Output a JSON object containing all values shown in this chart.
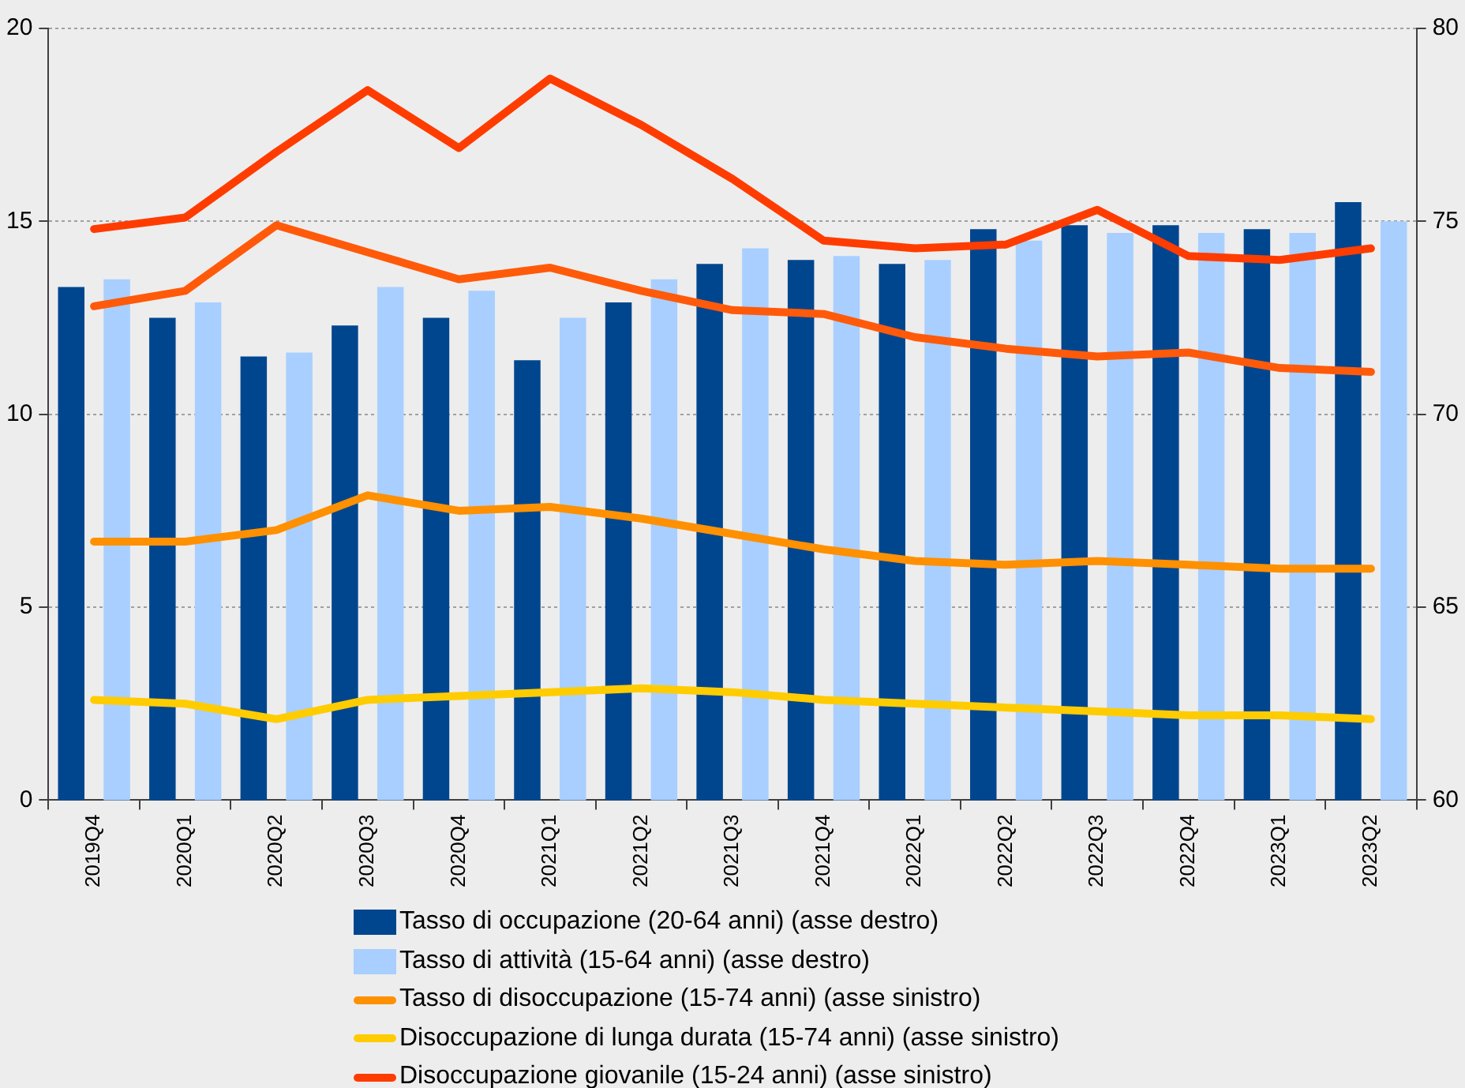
{
  "chart_data": {
    "type": "bar",
    "categories": [
      "2019Q4",
      "2020Q1",
      "2020Q2",
      "2020Q3",
      "2020Q4",
      "2021Q1",
      "2021Q2",
      "2021Q3",
      "2021Q4",
      "2022Q1",
      "2022Q2",
      "2022Q3",
      "2022Q4",
      "2023Q1",
      "2023Q2"
    ],
    "ylim": [
      0,
      20
    ],
    "yticks": [
      0,
      5,
      10,
      15,
      20
    ],
    "y2lim": [
      60,
      80
    ],
    "y2ticks": [
      60,
      65,
      70,
      75,
      80
    ],
    "grid": "y",
    "legend": "bottom",
    "marker": "none",
    "series": [
      {
        "name": "Tasso di occupazione (20-64 anni) (asse destro)",
        "axis": "y2",
        "color": "#00468f",
        "values": [
          73.3,
          72.5,
          71.5,
          72.3,
          72.5,
          71.4,
          72.9,
          73.9,
          74.0,
          73.9,
          74.8,
          74.9,
          74.9,
          74.8,
          75.5
        ]
      },
      {
        "name": "Tasso di attività (15-64 anni) (asse destro)",
        "axis": "y2",
        "color": "#a8cfff",
        "values": [
          73.5,
          72.9,
          71.6,
          73.3,
          73.2,
          72.5,
          73.5,
          74.3,
          74.1,
          74.0,
          74.5,
          74.7,
          74.7,
          74.7,
          75.0
        ]
      },
      {
        "name": "Tasso di disoccupazione (15-74 anni) (asse sinistro)",
        "type": "line",
        "color": "#ff9000",
        "values": [
          6.7,
          6.7,
          7.0,
          7.9,
          7.5,
          7.6,
          7.3,
          6.9,
          6.5,
          6.2,
          6.1,
          6.2,
          6.1,
          6.0,
          6.0
        ]
      },
      {
        "name": "Disoccupazione di lunga durata (15-74 anni) (asse sinistro)",
        "type": "line",
        "color": "#ffcc00",
        "values": [
          2.6,
          2.5,
          2.1,
          2.6,
          2.7,
          2.8,
          2.9,
          2.8,
          2.6,
          2.5,
          2.4,
          2.3,
          2.2,
          2.2,
          2.1
        ]
      },
      {
        "name": "Disoccupazione giovanile (15-24 anni) (asse sinistro)",
        "type": "line",
        "color": "#ff3c00",
        "values": [
          14.8,
          15.1,
          16.8,
          18.4,
          16.9,
          18.7,
          17.5,
          16.1,
          14.5,
          14.3,
          14.4,
          15.3,
          14.1,
          14.0,
          14.3
        ]
      },
      {
        "type": "line",
        "color": "#ff5a0a",
        "values": [
          12.8,
          13.2,
          14.9,
          14.2,
          13.5,
          13.8,
          13.2,
          12.7,
          12.6,
          12.0,
          11.7,
          11.5,
          11.6,
          11.2,
          11.1
        ]
      }
    ]
  }
}
